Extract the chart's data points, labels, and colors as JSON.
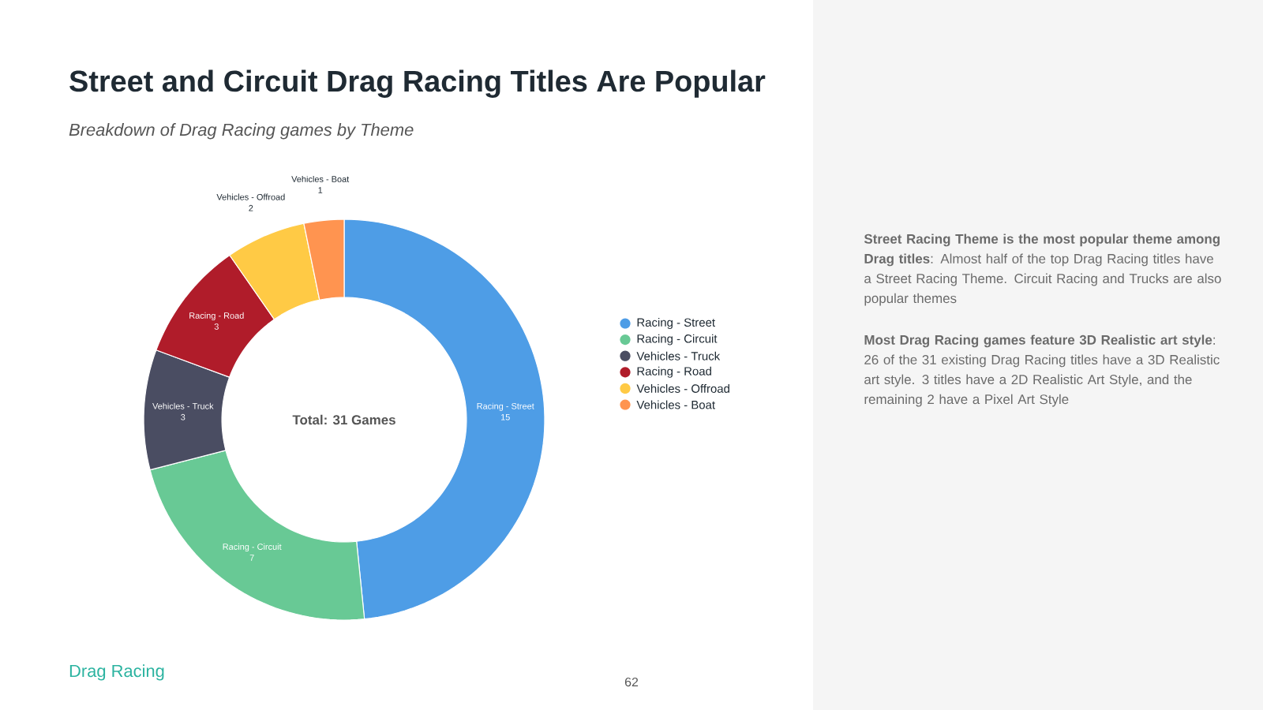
{
  "chart_data": {
    "type": "donut",
    "title": "Street and Circuit Drag Racing Titles Are Popular",
    "subtitle": "Breakdown of Drag Racing games by Theme",
    "categories": [
      "Racing - Street",
      "Racing - Circuit",
      "Vehicles - Truck",
      "Racing - Road",
      "Vehicles - Offroad",
      "Vehicles - Boat"
    ],
    "values": [
      15,
      7,
      3,
      3,
      2,
      1
    ],
    "colors": [
      "#4e9de6",
      "#68c995",
      "#4a4d62",
      "#b01c2a",
      "#ffca45",
      "#ff9450"
    ],
    "data_labels": true,
    "legend": "right",
    "annotations": [
      "Total: 31 Games",
      "**Street Racing Theme is the most popular theme among Drag titles**: Almost half of the top Drag Racing titles have a Street Racing Theme. Circuit Racing and Trucks are also popular themes",
      "**Most Drag Racing games feature 3D Realistic art style**: 26 of the 31 existing Drag Racing titles have a 3D Realistic art style. 3 titles have a 2D Realistic Art Style, and the remaining 2 have a Pixel Art Style",
      "Drag Racing",
      "62"
    ]
  }
}
